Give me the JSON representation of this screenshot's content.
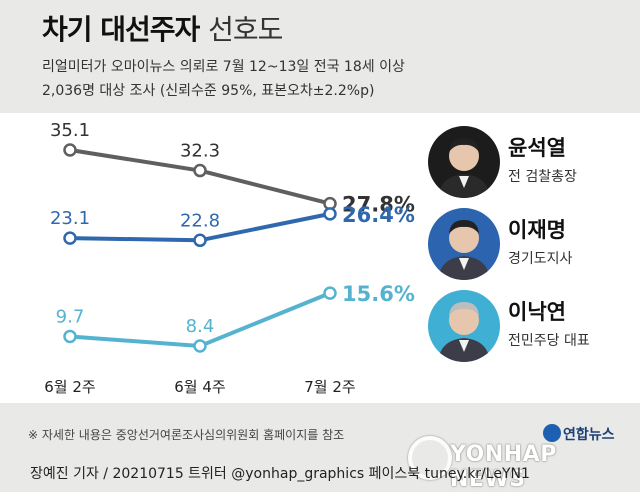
{
  "header": {
    "title": "차기 대선주자",
    "title_suffix": "선호도",
    "subtitle1": "리얼미터가 오마이뉴스 의뢰로 7월 12~13일 전국 18세 이상",
    "subtitle2": "2,036명 대상 조사 (신뢰수준 95%, 표본오차±2.2%p)"
  },
  "chart_data": {
    "type": "line",
    "categories": [
      "6월 2주",
      "6월 4주",
      "7월 2주"
    ],
    "ylim": [
      0,
      40
    ],
    "grid": false,
    "series": [
      {
        "name": "윤석열",
        "values": [
          35.1,
          32.3,
          27.8
        ],
        "labels": [
          "35.1",
          "32.3",
          "27.8%"
        ],
        "color": "#5f5f5f"
      },
      {
        "name": "이재명",
        "values": [
          23.1,
          22.8,
          26.4
        ],
        "labels": [
          "23.1",
          "22.8",
          "26.4%"
        ],
        "color": "#2f68ad"
      },
      {
        "name": "이낙연",
        "values": [
          9.7,
          8.4,
          15.6
        ],
        "labels": [
          "9.7",
          "8.4",
          "15.6%"
        ],
        "color": "#56b3cf"
      }
    ]
  },
  "people": [
    {
      "name": "윤석열",
      "role": "전 검찰총장",
      "color": "#5f5f5f"
    },
    {
      "name": "이재명",
      "role": "경기도지사",
      "color": "#2f68ad"
    },
    {
      "name": "이낙연",
      "role": "전민주당 대표",
      "color": "#56b3cf"
    }
  ],
  "footnote": "※ 자세한 내용은 중앙선거여론조사심의위원회 홈페이지를 참조",
  "logo": "연합뉴스",
  "watermark": "YONHAP NEWS",
  "credit": "장예진 기자 / 20210715 트위터 @yonhap_graphics 페이스북 tuney.kr/LeYN1"
}
